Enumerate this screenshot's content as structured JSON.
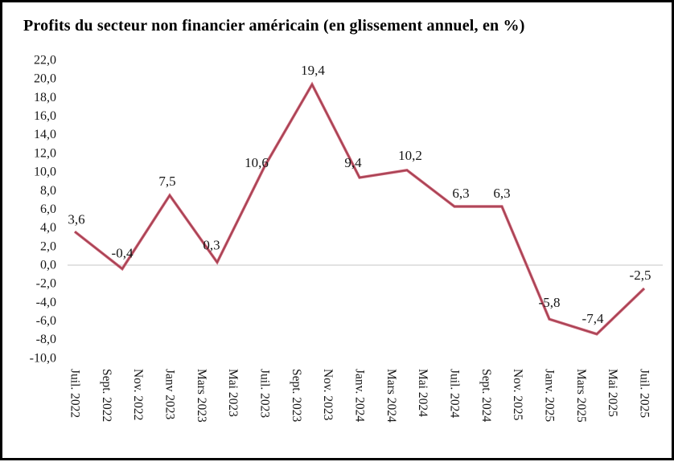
{
  "chart_data": {
    "type": "line",
    "title": "Profits du secteur non financier américain (en glissement annuel, en %)",
    "legend": "none",
    "grid": "zero-line-only",
    "gridline_color": "#d9d9d9",
    "x_tick_labels": [
      "Juil. 2022",
      "Sept. 2022",
      "Nov. 2022",
      "Janv 2023",
      "Mars 2023",
      "Mai 2023",
      "Juil. 2023",
      "Sept. 2023",
      "Nov. 2023",
      "Janv. 2024",
      "Mars 2024",
      "Mai 2024",
      "Juil. 2024",
      "Sept. 2024",
      "Nov. 2025",
      "Janv. 2025",
      "Mars 2025",
      "Mai 2025",
      "Juil. 2025"
    ],
    "y_axis": {
      "min": -10.0,
      "max": 22.0,
      "step": 2.0
    },
    "y_tick_labels": [
      "22,0",
      "20,0",
      "18,0",
      "16,0",
      "14,0",
      "12,0",
      "10,0",
      "8,0",
      "6,0",
      "4,0",
      "2,0",
      "0,0",
      "-2,0",
      "-4,0",
      "-6,0",
      "-8,0",
      "-10,0"
    ],
    "series": [
      {
        "values": [
          3.6,
          -0.4,
          7.5,
          0.3,
          10.6,
          19.4,
          9.4,
          10.2,
          6.3,
          6.3,
          -5.8,
          -7.4,
          -2.5
        ],
        "point_labels": [
          "3,6",
          "-0,4",
          "7,5",
          "0,3",
          "10,6",
          "19,4",
          "9,4",
          "10,2",
          "6,3",
          "6,3",
          "-5,8",
          "-7,4",
          "-2,5"
        ],
        "color_outer": "#ca6275",
        "color_inner": "#a43f50"
      }
    ]
  }
}
